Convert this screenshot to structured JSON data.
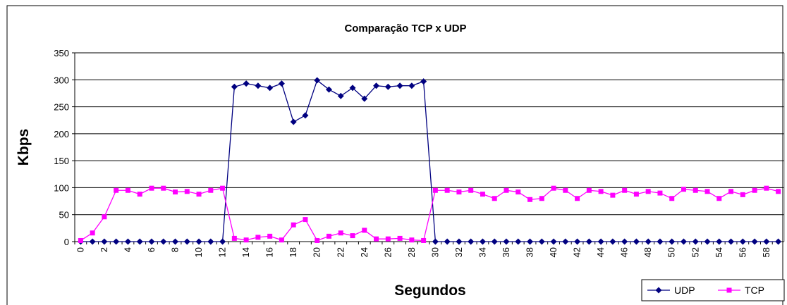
{
  "chart_data": {
    "type": "line",
    "title": "Comparação TCP x UDP",
    "x_label": "Segundos",
    "y_label": "Kbps",
    "categories": [
      0,
      null,
      2,
      null,
      4,
      null,
      6,
      null,
      8,
      null,
      10,
      null,
      12,
      null,
      14,
      null,
      16,
      null,
      18,
      null,
      20,
      null,
      22,
      null,
      24,
      null,
      26,
      null,
      28,
      null,
      30,
      null,
      32,
      null,
      34,
      null,
      36,
      null,
      38,
      null,
      40,
      null,
      42,
      null,
      44,
      null,
      46,
      null,
      48,
      null,
      50,
      null,
      52,
      null,
      54,
      null,
      56,
      null,
      58,
      null
    ],
    "series": [
      {
        "name": "UDP",
        "color": "#000080",
        "marker": "diamond",
        "values": [
          0,
          0,
          0,
          0,
          0,
          0,
          0,
          0,
          0,
          0,
          0,
          0,
          0,
          287,
          293,
          289,
          285,
          293,
          222,
          234,
          299,
          282,
          270,
          285,
          265,
          289,
          287,
          289,
          289,
          297,
          0,
          0,
          0,
          0,
          0,
          0,
          0,
          0,
          0,
          0,
          0,
          0,
          0,
          0,
          0,
          0,
          0,
          0,
          0,
          0,
          0,
          0,
          0,
          0,
          0,
          0,
          0,
          0,
          0,
          0
        ]
      },
      {
        "name": "TCP",
        "color": "#ff00ff",
        "marker": "square",
        "values": [
          2,
          16,
          46,
          95,
          95,
          88,
          99,
          99,
          92,
          93,
          88,
          95,
          99,
          6,
          3,
          8,
          10,
          3,
          31,
          41,
          2,
          10,
          16,
          11,
          21,
          5,
          5,
          6,
          3,
          2,
          95,
          95,
          92,
          95,
          88,
          80,
          95,
          92,
          78,
          80,
          99,
          95,
          80,
          95,
          93,
          86,
          95,
          88,
          93,
          90,
          80,
          97,
          95,
          93,
          80,
          93,
          87,
          95,
          99,
          93
        ]
      }
    ],
    "ylim": [
      0,
      350
    ],
    "yticks": [
      0,
      50,
      100,
      150,
      200,
      250,
      300,
      350
    ],
    "grid": true,
    "legend": "bottom-right"
  }
}
